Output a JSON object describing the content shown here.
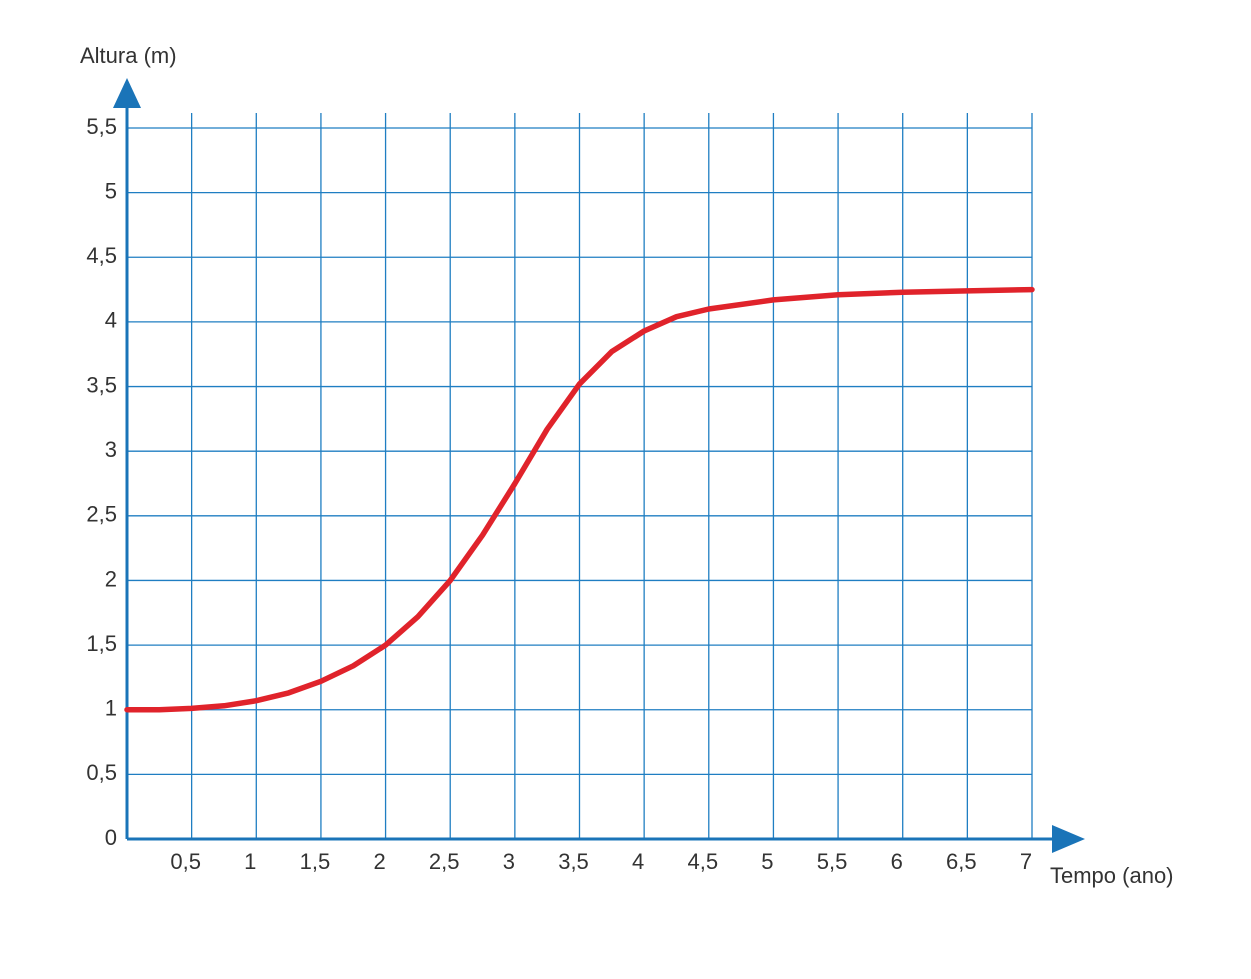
{
  "chart_data": {
    "type": "line",
    "y_label": "Altura (m)",
    "x_label": "Tempo (ano)",
    "x": [
      0,
      0.25,
      0.5,
      0.75,
      1,
      1.25,
      1.5,
      1.75,
      2,
      2.25,
      2.5,
      2.75,
      3,
      3.25,
      3.5,
      3.75,
      4,
      4.25,
      4.5,
      5,
      5.5,
      6,
      6.5,
      7
    ],
    "values": [
      1.0,
      1.0,
      1.01,
      1.03,
      1.07,
      1.13,
      1.22,
      1.34,
      1.5,
      1.72,
      2.0,
      2.35,
      2.75,
      3.17,
      3.52,
      3.77,
      3.93,
      4.04,
      4.1,
      4.17,
      4.21,
      4.23,
      4.24,
      4.25
    ],
    "color": "#e0232b",
    "xlim": [
      0,
      7
    ],
    "xticks": [
      {
        "value": 0.5,
        "label": "0,5"
      },
      1,
      {
        "value": 1.5,
        "label": "1,5"
      },
      2,
      {
        "value": 2.5,
        "label": "2,5"
      },
      3,
      {
        "value": 3.5,
        "label": "3,5"
      },
      4,
      {
        "value": 4.5,
        "label": "4,5"
      },
      5,
      {
        "value": 5.5,
        "label": "5,5"
      },
      6,
      {
        "value": 6.5,
        "label": "6,5"
      },
      7
    ],
    "ylim": [
      0,
      5.5
    ],
    "yticks": [
      0,
      {
        "value": 0.5,
        "label": "0,5"
      },
      1,
      {
        "value": 1.5,
        "label": "1,5"
      },
      2,
      {
        "value": 2.5,
        "label": "2,5"
      },
      3,
      {
        "value": 3.5,
        "label": "3,5"
      },
      4,
      {
        "value": 4.5,
        "label": "4,5"
      },
      5,
      {
        "value": 5.5,
        "label": "5,5"
      }
    ],
    "grid": true
  }
}
